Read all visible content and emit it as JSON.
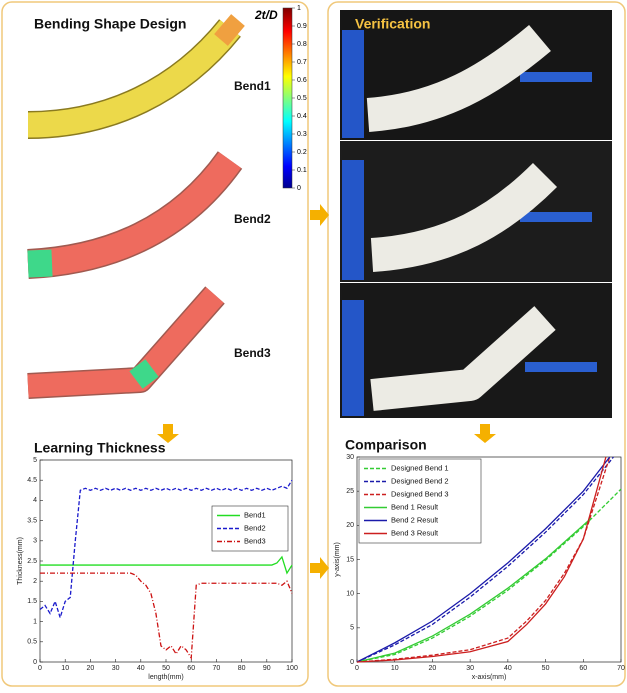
{
  "design": {
    "title": "Bending Shape Design",
    "bends": [
      "Bend1",
      "Bend2",
      "Bend3"
    ]
  },
  "colorbar": {
    "label": "2t/D",
    "lim": [
      0,
      1
    ],
    "ticks": [
      0,
      0.1,
      0.2,
      0.3,
      0.4,
      0.5,
      0.6,
      0.7,
      0.8,
      0.9,
      1
    ]
  },
  "verification": {
    "title": "Verification"
  },
  "chart_data": [
    {
      "type": "line",
      "title": "Learning Thickness",
      "x_label": "length(mm)",
      "y_label": "Thickness(mm)",
      "xlim": [
        0,
        100
      ],
      "xticks": [
        0,
        10,
        20,
        30,
        40,
        50,
        60,
        70,
        80,
        90,
        100
      ],
      "ylim": [
        0,
        5
      ],
      "yticks": [
        0,
        0.5,
        1,
        1.5,
        2,
        2.5,
        3,
        3.5,
        4,
        4.5,
        5
      ],
      "legend": "right",
      "x": [
        0,
        2,
        4,
        6,
        8,
        10,
        12,
        14,
        16,
        18,
        20,
        22,
        24,
        26,
        28,
        30,
        32,
        34,
        36,
        38,
        40,
        42,
        44,
        46,
        48,
        50,
        52,
        54,
        56,
        58,
        60,
        62,
        64,
        66,
        68,
        70,
        72,
        74,
        76,
        78,
        80,
        82,
        84,
        86,
        88,
        90,
        92,
        94,
        96,
        98,
        100
      ],
      "series": [
        {
          "name": "Bend1",
          "color": "#22dd22",
          "style": "solid",
          "values": [
            2.4,
            2.4,
            2.4,
            2.4,
            2.4,
            2.4,
            2.4,
            2.4,
            2.4,
            2.4,
            2.4,
            2.4,
            2.4,
            2.4,
            2.4,
            2.4,
            2.4,
            2.4,
            2.4,
            2.4,
            2.4,
            2.4,
            2.4,
            2.4,
            2.4,
            2.4,
            2.4,
            2.4,
            2.4,
            2.4,
            2.4,
            2.4,
            2.4,
            2.4,
            2.4,
            2.4,
            2.4,
            2.4,
            2.4,
            2.4,
            2.4,
            2.4,
            2.4,
            2.4,
            2.4,
            2.4,
            2.4,
            2.45,
            2.6,
            2.2,
            2.4
          ]
        },
        {
          "name": "Bend2",
          "color": "#1a1acc",
          "style": "dashed",
          "values": [
            1.3,
            1.4,
            1.2,
            1.5,
            1.1,
            1.5,
            1.6,
            3.0,
            4.25,
            4.3,
            4.25,
            4.3,
            4.25,
            4.3,
            4.25,
            4.3,
            4.25,
            4.3,
            4.25,
            4.3,
            4.25,
            4.3,
            4.25,
            4.3,
            4.25,
            4.3,
            4.25,
            4.3,
            4.25,
            4.3,
            4.25,
            4.3,
            4.25,
            4.3,
            4.25,
            4.3,
            4.25,
            4.3,
            4.25,
            4.3,
            4.25,
            4.3,
            4.25,
            4.3,
            4.25,
            4.3,
            4.25,
            4.3,
            4.35,
            4.3,
            4.5
          ]
        },
        {
          "name": "Bend3",
          "color": "#cc1111",
          "style": "dashdot",
          "values": [
            2.2,
            2.2,
            2.2,
            2.2,
            2.2,
            2.2,
            2.2,
            2.2,
            2.2,
            2.2,
            2.2,
            2.2,
            2.2,
            2.2,
            2.2,
            2.2,
            2.2,
            2.2,
            2.2,
            2.15,
            2.0,
            1.9,
            1.7,
            1.2,
            0.4,
            0.3,
            0.4,
            0.2,
            0.4,
            0.3,
            0.1,
            1.9,
            1.95,
            1.95,
            1.95,
            1.95,
            1.95,
            1.95,
            1.95,
            1.95,
            1.95,
            1.95,
            1.95,
            1.95,
            1.95,
            1.95,
            1.95,
            1.95,
            1.9,
            2.0,
            1.7
          ]
        }
      ]
    },
    {
      "type": "line",
      "title": "Comparison",
      "x_label": "x-axis(mm)",
      "y_label": "y-axis(mm)",
      "xlim": [
        0,
        70
      ],
      "xticks": [
        0,
        10,
        20,
        30,
        40,
        50,
        60,
        70
      ],
      "ylim": [
        0,
        30
      ],
      "yticks": [
        0,
        5,
        10,
        15,
        20,
        25,
        30
      ],
      "legend": "top-left",
      "series": [
        {
          "name": "Designed Bend 1",
          "color": "#33cc33",
          "style": "dashed",
          "x": [
            0,
            10,
            20,
            30,
            40,
            50,
            60,
            70
          ],
          "values": [
            0,
            1.1,
            3.5,
            6.7,
            10.5,
            14.9,
            19.8,
            25.3
          ]
        },
        {
          "name": "Designed Bend 2",
          "color": "#1a1aaa",
          "style": "dashed",
          "x": [
            0,
            10,
            20,
            30,
            40,
            50,
            60,
            68
          ],
          "values": [
            0,
            2.5,
            5.5,
            9.5,
            14,
            19,
            24.5,
            30
          ]
        },
        {
          "name": "Designed Bend 3",
          "color": "#cc1f1f",
          "style": "dashed",
          "x": [
            0,
            10,
            20,
            30,
            40,
            45,
            50,
            55,
            60,
            67
          ],
          "values": [
            0,
            0.4,
            1,
            1.8,
            3.5,
            6,
            9,
            13,
            18,
            30
          ]
        },
        {
          "name": "Bend 1 Result",
          "color": "#33cc33",
          "style": "solid",
          "x": [
            0,
            10,
            20,
            30,
            40,
            50,
            62
          ],
          "values": [
            0,
            1.3,
            3.8,
            7.0,
            10.8,
            15.1,
            21
          ]
        },
        {
          "name": "Bend 2 Result",
          "color": "#1a1aaa",
          "style": "solid",
          "x": [
            0,
            10,
            20,
            30,
            40,
            50,
            60,
            67
          ],
          "values": [
            0,
            2.8,
            6.0,
            10,
            14.5,
            19.5,
            25,
            30
          ]
        },
        {
          "name": "Bend 3 Result",
          "color": "#cc1f1f",
          "style": "solid",
          "x": [
            0,
            10,
            20,
            30,
            40,
            45,
            50,
            55,
            60,
            66
          ],
          "values": [
            0,
            0.3,
            0.8,
            1.5,
            3,
            5.5,
            8.5,
            12.5,
            18,
            30
          ]
        }
      ]
    }
  ]
}
